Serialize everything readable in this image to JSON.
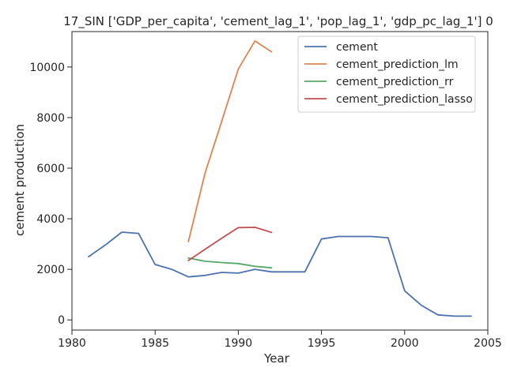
{
  "chart_data": {
    "type": "line",
    "title": "17_SIN ['GDP_per_capita', 'cement_lag_1', 'pop_lag_1', 'gdp_pc_lag_1'] 0",
    "xlabel": "Year",
    "ylabel": "cement production",
    "xlim": [
      1980,
      2005
    ],
    "ylim": [
      -400,
      11400
    ],
    "xticks": [
      1980,
      1985,
      1990,
      1995,
      2000,
      2005
    ],
    "yticks": [
      0,
      2000,
      4000,
      6000,
      8000,
      10000
    ],
    "grid": false,
    "legend_position": "top-right",
    "series": [
      {
        "name": "cement",
        "color": "#4c72b0",
        "x": [
          1981,
          1982,
          1983,
          1984,
          1985,
          1986,
          1987,
          1988,
          1989,
          1990,
          1991,
          1992,
          1993,
          1994,
          1995,
          1996,
          1997,
          1998,
          1999,
          2000,
          2001,
          2002,
          2003,
          2004
        ],
        "y": [
          2500,
          2960,
          3470,
          3420,
          2190,
          2000,
          1700,
          1760,
          1880,
          1850,
          2000,
          1900,
          1900,
          1900,
          3200,
          3300,
          3300,
          3300,
          3250,
          1150,
          580,
          200,
          150,
          150
        ]
      },
      {
        "name": "cement_prediction_lm",
        "color": "#dd8452",
        "x": [
          1987,
          1988,
          1989,
          1990,
          1991,
          1992
        ],
        "y": [
          3100,
          5800,
          7850,
          9920,
          11030,
          10600
        ]
      },
      {
        "name": "cement_prediction_rr",
        "color": "#55a868",
        "x": [
          1987,
          1988,
          1989,
          1990,
          1991,
          1992
        ],
        "y": [
          2450,
          2320,
          2270,
          2230,
          2120,
          2060
        ]
      },
      {
        "name": "cement_prediction_lasso",
        "color": "#c44e52",
        "x": [
          1987,
          1988,
          1989,
          1990,
          1991,
          1992
        ],
        "y": [
          2350,
          2790,
          3230,
          3650,
          3660,
          3460
        ]
      }
    ]
  }
}
